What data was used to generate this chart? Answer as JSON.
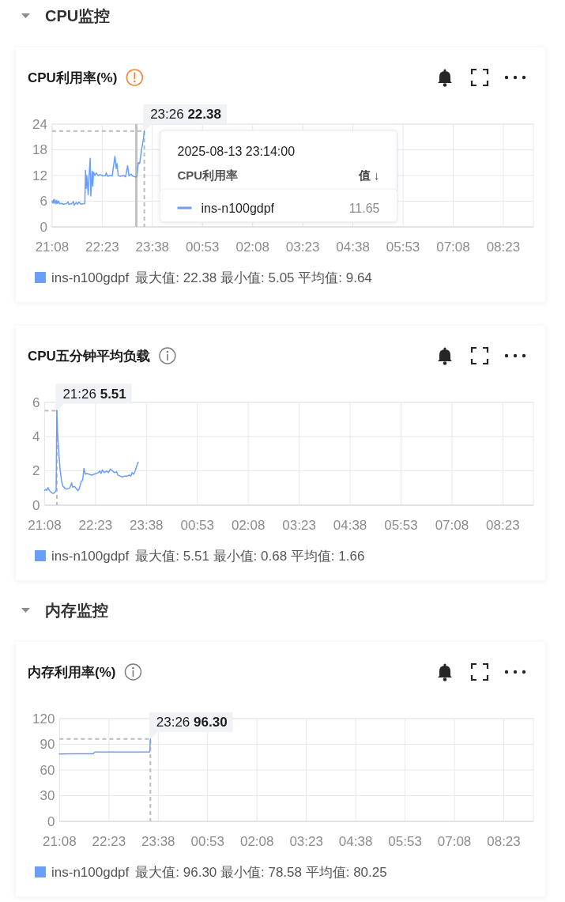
{
  "chart_data": [
    {
      "type": "other",
      "title": "CPU监控"
    },
    {
      "type": "line",
      "title": "CPU利用率(%)",
      "x": [
        "2025-08-13T21:08",
        "2025-08-13T21:09",
        "2025-08-13T21:10",
        "2025-08-13T21:11",
        "2025-08-13T21:12",
        "2025-08-13T21:14",
        "2025-08-13T21:15",
        "2025-08-13T21:16",
        "2025-08-13T21:18",
        "2025-08-13T21:19",
        "2025-08-13T21:22",
        "2025-08-13T21:25",
        "2025-08-13T21:29",
        "2025-08-13T21:32",
        "2025-08-13T21:33",
        "2025-08-13T21:37",
        "2025-08-13T21:40",
        "2025-08-13T21:41",
        "2025-08-13T21:44",
        "2025-08-13T21:46",
        "2025-08-13T21:48",
        "2025-08-13T21:51",
        "2025-08-13T21:55",
        "2025-08-13T21:57",
        "2025-08-13T21:58",
        "2025-08-13T21:59",
        "2025-08-13T22:00",
        "2025-08-13T22:02",
        "2025-08-13T22:03",
        "2025-08-13T22:05",
        "2025-08-13T22:06",
        "2025-08-13T22:08",
        "2025-08-13T22:09",
        "2025-08-13T22:10",
        "2025-08-13T22:12",
        "2025-08-13T22:14",
        "2025-08-13T22:17",
        "2025-08-13T22:20",
        "2025-08-13T22:24",
        "2025-08-13T22:28",
        "2025-08-13T22:29",
        "2025-08-13T22:31",
        "2025-08-13T22:35",
        "2025-08-13T22:38",
        "2025-08-13T22:40",
        "2025-08-13T22:42",
        "2025-08-13T22:44",
        "2025-08-13T22:45",
        "2025-08-13T22:47",
        "2025-08-13T22:50",
        "2025-08-13T22:55",
        "2025-08-13T22:58",
        "2025-08-13T23:01",
        "2025-08-13T23:03",
        "2025-08-13T23:06",
        "2025-08-13T23:09",
        "2025-08-13T23:14",
        "2025-08-13T23:15",
        "2025-08-13T23:17",
        "2025-08-13T23:19",
        "2025-08-13T23:22",
        "2025-08-13T23:23",
        "2025-08-13T23:25",
        "2025-08-13T23:26"
      ],
      "series": [
        {
          "name": "ins-n100gdpf",
          "color": "#6b9ef7",
          "values": [
            6.0,
            5.6,
            6.3,
            5.5,
            6.4,
            5.4,
            6.2,
            5.5,
            6.0,
            5.4,
            5.5,
            5.3,
            5.4,
            5.8,
            5.3,
            5.4,
            5.9,
            5.05,
            5.7,
            5.3,
            5.8,
            5.3,
            5.4,
            5.5,
            13.2,
            9.0,
            12.0,
            7.5,
            11.0,
            16.0,
            7.2,
            13.0,
            9.5,
            12.8,
            12.0,
            12.6,
            12.0,
            12.2,
            11.9,
            12.0,
            12.6,
            11.8,
            12.0,
            11.9,
            14.3,
            16.5,
            13.6,
            14.8,
            12.0,
            11.8,
            12.0,
            11.7,
            14.3,
            11.9,
            12.3,
            11.8,
            11.65,
            12.0,
            15.0,
            14.8,
            18.2,
            19.0,
            21.0,
            22.38
          ]
        }
      ],
      "xlim": [
        "2025-08-13T21:08",
        "2025-08-14T09:08"
      ],
      "xticks": [
        {
          "value": "2025-08-13T21:08",
          "label": "21:08"
        },
        {
          "value": "2025-08-13T22:23",
          "label": "22:23"
        },
        {
          "value": "2025-08-13T23:38",
          "label": "23:38"
        },
        {
          "value": "2025-08-14T00:53",
          "label": "00:53"
        },
        {
          "value": "2025-08-14T02:08",
          "label": "02:08"
        },
        {
          "value": "2025-08-14T03:23",
          "label": "03:23"
        },
        {
          "value": "2025-08-14T04:38",
          "label": "04:38"
        },
        {
          "value": "2025-08-14T05:53",
          "label": "05:53"
        },
        {
          "value": "2025-08-14T07:08",
          "label": "07:08"
        },
        {
          "value": "2025-08-14T08:23",
          "label": "08:23"
        }
      ],
      "ylim": [
        0,
        24
      ],
      "yticks": [
        0,
        6,
        12,
        18,
        24
      ],
      "grid": true,
      "legend": "bottom left",
      "annotations": [
        {
          "text": "23:26 22.38",
          "x": "2025-08-13T23:26",
          "y": 22.38
        },
        "最大值: 22.38 最小值: 5.05 平均值: 9.64"
      ],
      "ref_lines": [
        {
          "axis": "x",
          "value": "2025-08-13T23:14",
          "label": "2025-08-13 23:14:00\nCPU利用率\t值 ↓\nins-n100gdpf\t11.65",
          "color": "#c2c2c2"
        },
        {
          "axis": "x",
          "value": "2025-08-13T23:26",
          "color": "#b8bcc3",
          "line_style": "dashed"
        }
      ]
    },
    {
      "type": "line",
      "title": "CPU五分钟平均负载",
      "x": [
        "2025-08-13T21:08",
        "2025-08-13T21:10",
        "2025-08-13T21:11",
        "2025-08-13T21:13",
        "2025-08-13T21:15",
        "2025-08-13T21:17",
        "2025-08-13T21:19",
        "2025-08-13T21:21",
        "2025-08-13T21:24",
        "2025-08-13T21:25",
        "2025-08-13T21:26",
        "2025-08-13T21:27",
        "2025-08-13T21:29",
        "2025-08-13T21:31",
        "2025-08-13T21:33",
        "2025-08-13T21:35",
        "2025-08-13T21:39",
        "2025-08-13T21:42",
        "2025-08-13T21:45",
        "2025-08-13T21:48",
        "2025-08-13T21:49",
        "2025-08-13T21:52",
        "2025-08-13T21:55",
        "2025-08-13T21:57",
        "2025-08-13T21:59",
        "2025-08-13T22:02",
        "2025-08-13T22:04",
        "2025-08-13T22:06",
        "2025-08-13T22:08",
        "2025-08-13T22:10",
        "2025-08-13T22:14",
        "2025-08-13T22:18",
        "2025-08-13T22:20",
        "2025-08-13T22:24",
        "2025-08-13T22:27",
        "2025-08-13T22:29",
        "2025-08-13T22:31",
        "2025-08-13T22:33",
        "2025-08-13T22:36",
        "2025-08-13T22:39",
        "2025-08-13T22:42",
        "2025-08-13T22:45",
        "2025-08-13T22:48",
        "2025-08-13T22:51",
        "2025-08-13T22:54",
        "2025-08-13T22:56",
        "2025-08-13T22:59",
        "2025-08-13T23:03",
        "2025-08-13T23:06",
        "2025-08-13T23:09",
        "2025-08-13T23:13",
        "2025-08-13T23:15",
        "2025-08-13T23:17",
        "2025-08-13T23:19",
        "2025-08-13T23:21",
        "2025-08-13T23:23",
        "2025-08-13T23:25",
        "2025-08-13T23:26"
      ],
      "series": [
        {
          "name": "ins-n100gdpf",
          "color": "#6b9ef7",
          "values": [
            0.86,
            0.92,
            0.86,
            1.02,
            0.86,
            0.77,
            0.71,
            0.68,
            0.8,
            0.9,
            5.51,
            4.3,
            3.0,
            2.0,
            1.4,
            1.1,
            0.95,
            0.95,
            1.0,
            1.3,
            1.05,
            1.1,
            0.95,
            0.85,
            0.95,
            1.4,
            1.45,
            2.15,
            1.8,
            1.85,
            1.8,
            1.75,
            1.8,
            1.85,
            1.9,
            2.0,
            1.85,
            2.05,
            1.9,
            2.0,
            1.9,
            2.1,
            2.0,
            1.9,
            1.95,
            1.75,
            1.7,
            1.65,
            1.7,
            1.7,
            1.75,
            1.7,
            1.9,
            1.8,
            1.95,
            2.2,
            2.45,
            2.5
          ]
        }
      ],
      "xlim": [
        "2025-08-13T21:08",
        "2025-08-14T09:08"
      ],
      "xticks": [
        {
          "value": "2025-08-13T21:08",
          "label": "21:08"
        },
        {
          "value": "2025-08-13T22:23",
          "label": "22:23"
        },
        {
          "value": "2025-08-13T23:38",
          "label": "23:38"
        },
        {
          "value": "2025-08-14T00:53",
          "label": "00:53"
        },
        {
          "value": "2025-08-14T02:08",
          "label": "02:08"
        },
        {
          "value": "2025-08-14T03:23",
          "label": "03:23"
        },
        {
          "value": "2025-08-14T04:38",
          "label": "04:38"
        },
        {
          "value": "2025-08-14T05:53",
          "label": "05:53"
        },
        {
          "value": "2025-08-14T07:08",
          "label": "07:08"
        },
        {
          "value": "2025-08-14T08:23",
          "label": "08:23"
        }
      ],
      "ylim": [
        0,
        6
      ],
      "yticks": [
        0,
        2,
        4,
        6
      ],
      "grid": true,
      "legend": "bottom left",
      "annotations": [
        {
          "text": "21:26 5.51",
          "x": "2025-08-13T21:26",
          "y": 5.51
        },
        "最大值: 5.51 最小值: 0.68 平均值: 1.66"
      ],
      "ref_lines": [
        {
          "axis": "x",
          "value": "2025-08-13T21:26",
          "color": "#b8bcc3",
          "line_style": "dashed"
        }
      ]
    },
    {
      "type": "other",
      "title": "内存监控"
    },
    {
      "type": "line",
      "title": "内存利用率(%)",
      "x": [
        "2025-08-13T21:08",
        "2025-08-13T21:30",
        "2025-08-13T21:50",
        "2025-08-13T21:59",
        "2025-08-13T22:02",
        "2025-08-13T22:04",
        "2025-08-13T22:30",
        "2025-08-13T23:00",
        "2025-08-13T23:25",
        "2025-08-13T23:26"
      ],
      "series": [
        {
          "name": "ins-n100gdpf",
          "color": "#6b9ef7",
          "values": [
            78.58,
            79,
            79,
            79,
            81,
            81,
            81,
            81,
            81,
            96.3
          ]
        }
      ],
      "xlim": [
        "2025-08-13T21:08",
        "2025-08-14T09:08"
      ],
      "xticks": [
        {
          "value": "2025-08-13T21:08",
          "label": "21:08"
        },
        {
          "value": "2025-08-13T22:23",
          "label": "22:23"
        },
        {
          "value": "2025-08-13T23:38",
          "label": "23:38"
        },
        {
          "value": "2025-08-14T00:53",
          "label": "00:53"
        },
        {
          "value": "2025-08-14T02:08",
          "label": "02:08"
        },
        {
          "value": "2025-08-14T03:23",
          "label": "03:23"
        },
        {
          "value": "2025-08-14T04:38",
          "label": "04:38"
        },
        {
          "value": "2025-08-14T05:53",
          "label": "05:53"
        },
        {
          "value": "2025-08-14T07:08",
          "label": "07:08"
        },
        {
          "value": "2025-08-14T08:23",
          "label": "08:23"
        }
      ],
      "ylim": [
        0,
        120
      ],
      "yticks": [
        0,
        30,
        60,
        90,
        120
      ],
      "grid": true,
      "legend": "bottom left",
      "annotations": [
        {
          "text": "23:26 96.30",
          "x": "2025-08-13T23:26",
          "y": 96.3
        },
        "最大值: 96.30 最小值: 78.58 平均值: 80.25"
      ],
      "ref_lines": [
        {
          "axis": "x",
          "value": "2025-08-13T23:26",
          "color": "#b8bcc3",
          "line_style": "dashed"
        }
      ]
    }
  ]
}
